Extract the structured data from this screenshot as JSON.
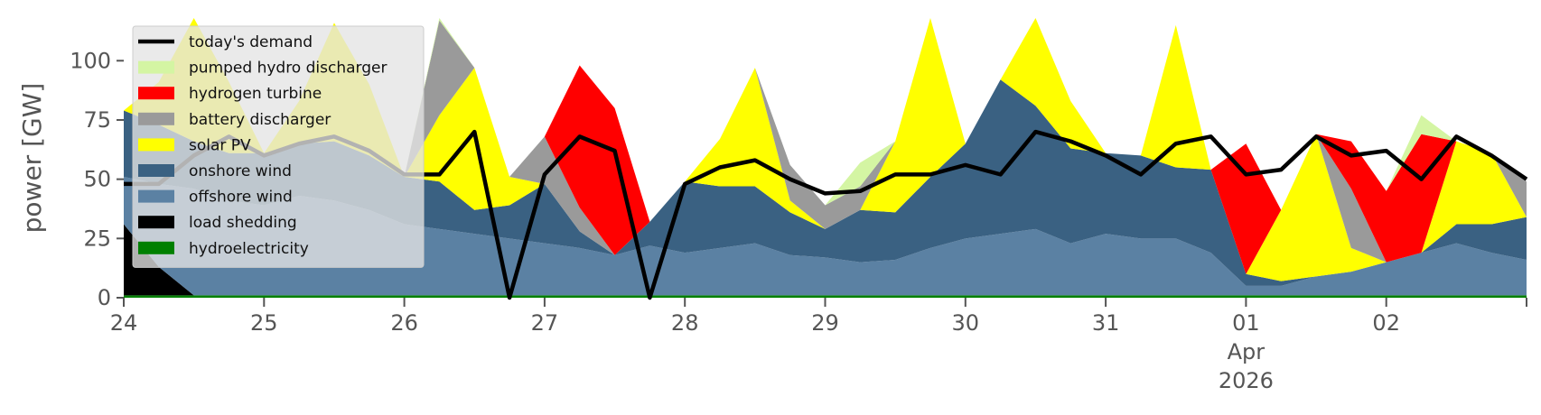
{
  "chart_data": {
    "type": "area",
    "ylabel": "power [GW]",
    "ylim": [
      0,
      118
    ],
    "yticks": [
      0,
      25,
      50,
      75,
      100
    ],
    "xlim": [
      "2026-03-24",
      "2026-04-03"
    ],
    "xtick_labels": [
      "24",
      "25",
      "26",
      "27",
      "28",
      "29",
      "30",
      "31",
      "01\nApr\n2026",
      "02"
    ],
    "grid": false,
    "legend_position": "top-left",
    "x": [
      "03-24 00h",
      "03-24 06h",
      "03-24 12h",
      "03-24 18h",
      "03-25 00h",
      "03-25 06h",
      "03-25 12h",
      "03-25 18h",
      "03-26 00h",
      "03-26 06h",
      "03-26 12h",
      "03-26 18h",
      "03-27 00h",
      "03-27 06h",
      "03-27 12h",
      "03-27 18h",
      "03-28 00h",
      "03-28 06h",
      "03-28 12h",
      "03-28 18h",
      "03-29 00h",
      "03-29 06h",
      "03-29 12h",
      "03-29 18h",
      "03-30 00h",
      "03-30 06h",
      "03-30 12h",
      "03-30 18h",
      "03-31 00h",
      "03-31 06h",
      "03-31 12h",
      "03-31 18h",
      "04-01 00h",
      "04-01 06h",
      "04-01 12h",
      "04-01 18h",
      "04-02 00h",
      "04-02 06h",
      "04-02 12h",
      "04-02 18h",
      "04-03 00h"
    ],
    "series": [
      {
        "name": "hydroelectricity",
        "color": "#008000",
        "values": [
          1,
          1,
          1,
          1,
          1,
          1,
          1,
          1,
          1,
          1,
          1,
          1,
          1,
          1,
          1,
          1,
          1,
          1,
          1,
          1,
          1,
          1,
          1,
          1,
          1,
          1,
          1,
          1,
          1,
          1,
          1,
          1,
          1,
          1,
          1,
          1,
          1,
          1,
          1,
          1,
          1
        ]
      },
      {
        "name": "load shedding",
        "color": "#000000",
        "values": [
          30,
          12,
          0,
          0,
          0,
          0,
          0,
          0,
          0,
          0,
          0,
          0,
          0,
          0,
          0,
          0,
          0,
          0,
          0,
          0,
          0,
          0,
          0,
          0,
          0,
          0,
          0,
          0,
          0,
          0,
          0,
          0,
          0,
          0,
          0,
          0,
          0,
          0,
          0,
          0,
          0
        ]
      },
      {
        "name": "offshore wind",
        "color": "#5b81a3",
        "values": [
          20,
          35,
          45,
          40,
          38,
          42,
          40,
          36,
          30,
          28,
          26,
          24,
          22,
          20,
          17,
          21,
          18,
          20,
          22,
          17,
          16,
          14,
          15,
          20,
          24,
          26,
          28,
          22,
          26,
          24,
          24,
          18,
          4,
          4,
          8,
          10,
          14,
          18,
          22,
          18,
          15
        ]
      },
      {
        "name": "onshore wind",
        "color": "#3a6182",
        "values": [
          28,
          25,
          20,
          20,
          22,
          22,
          25,
          23,
          20,
          20,
          10,
          14,
          25,
          7,
          0,
          10,
          30,
          26,
          24,
          18,
          12,
          22,
          20,
          30,
          40,
          65,
          52,
          40,
          34,
          35,
          30,
          35,
          5,
          2,
          0,
          0,
          0,
          0,
          8,
          12,
          18
        ]
      },
      {
        "name": "solar PV",
        "color": "#ffff00",
        "values": [
          0,
          18,
          55,
          30,
          0,
          18,
          50,
          30,
          0,
          28,
          60,
          12,
          0,
          0,
          0,
          0,
          0,
          20,
          50,
          5,
          0,
          0,
          30,
          75,
          0,
          0,
          40,
          20,
          0,
          0,
          60,
          0,
          0,
          30,
          60,
          10,
          0,
          0,
          35,
          30,
          0
        ]
      },
      {
        "name": "battery discharger",
        "color": "#9a9a9a",
        "values": [
          0,
          0,
          0,
          0,
          0,
          0,
          0,
          0,
          0,
          40,
          0,
          0,
          20,
          10,
          0,
          0,
          0,
          0,
          0,
          15,
          10,
          10,
          0,
          0,
          0,
          0,
          0,
          0,
          0,
          0,
          0,
          0,
          0,
          0,
          0,
          25,
          0,
          0,
          0,
          0,
          15
        ]
      },
      {
        "name": "hydrogen turbine",
        "color": "#ff0000",
        "values": [
          0,
          0,
          0,
          0,
          0,
          0,
          0,
          0,
          0,
          0,
          0,
          0,
          0,
          60,
          62,
          0,
          0,
          0,
          0,
          0,
          0,
          0,
          0,
          0,
          0,
          0,
          0,
          0,
          0,
          0,
          0,
          0,
          55,
          0,
          0,
          20,
          30,
          50,
          0,
          0,
          0
        ]
      },
      {
        "name": "pumped hydro discharger",
        "color": "#d4f5a3",
        "values": [
          0,
          0,
          0,
          0,
          0,
          0,
          0,
          0,
          0,
          10,
          0,
          0,
          0,
          0,
          0,
          0,
          0,
          0,
          0,
          0,
          0,
          10,
          0,
          0,
          0,
          0,
          0,
          0,
          0,
          0,
          0,
          0,
          0,
          0,
          0,
          0,
          0,
          8,
          0,
          0,
          0
        ]
      }
    ],
    "demand": {
      "name": "today's demand",
      "color": "#000000",
      "values": [
        48,
        48,
        60,
        68,
        60,
        65,
        68,
        62,
        52,
        52,
        70,
        0,
        52,
        68,
        62,
        0,
        48,
        55,
        58,
        50,
        44,
        45,
        52,
        52,
        56,
        52,
        70,
        66,
        60,
        52,
        65,
        68,
        52,
        54,
        68,
        60,
        62,
        50,
        68,
        60,
        50
      ]
    },
    "legend": [
      {
        "label": "today's demand",
        "color": "#000000",
        "kind": "line"
      },
      {
        "label": "pumped hydro discharger",
        "color": "#d4f5a3",
        "kind": "patch"
      },
      {
        "label": "hydrogen turbine",
        "color": "#ff0000",
        "kind": "patch"
      },
      {
        "label": "battery discharger",
        "color": "#9a9a9a",
        "kind": "patch"
      },
      {
        "label": "solar PV",
        "color": "#ffff00",
        "kind": "patch"
      },
      {
        "label": "onshore wind",
        "color": "#3a6182",
        "kind": "patch"
      },
      {
        "label": "offshore wind",
        "color": "#5b81a3",
        "kind": "patch"
      },
      {
        "label": "load shedding",
        "color": "#000000",
        "kind": "patch"
      },
      {
        "label": "hydroelectricity",
        "color": "#008000",
        "kind": "patch"
      }
    ]
  }
}
